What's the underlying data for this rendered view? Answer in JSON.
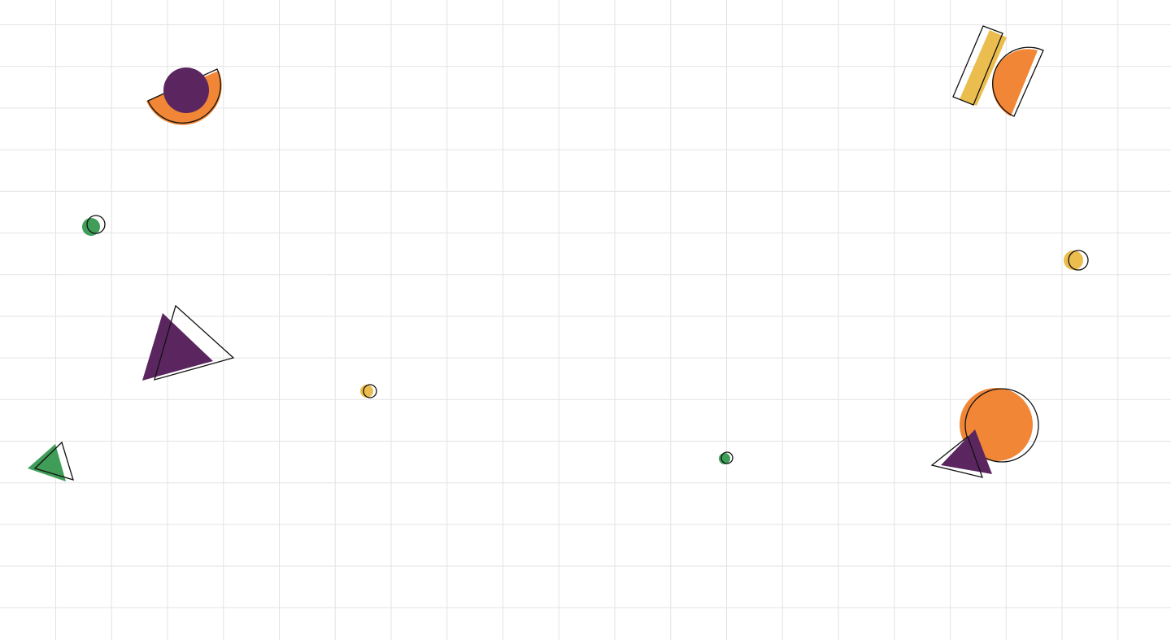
{
  "colors": {
    "background": "#ffffff",
    "grid": "#e3e3e3",
    "purple": "#5b2660",
    "orange": "#f08636",
    "yellow": "#ebbd4e",
    "green": "#3f9d58",
    "outline": "#111111"
  },
  "shapes": [
    {
      "name": "purple-circle-orange-semicircle-shape",
      "kind": "circle-over-semicircle"
    },
    {
      "name": "yellow-bar-orange-semicircle-shape",
      "kind": "bar-and-semicircle"
    },
    {
      "name": "green-dot-large-shape",
      "kind": "dot"
    },
    {
      "name": "yellow-dot-right-shape",
      "kind": "dot"
    },
    {
      "name": "purple-triangle-large-shape",
      "kind": "triangle"
    },
    {
      "name": "yellow-dot-small-shape",
      "kind": "dot"
    },
    {
      "name": "green-triangle-shape",
      "kind": "triangle"
    },
    {
      "name": "green-dot-small-shape",
      "kind": "dot"
    },
    {
      "name": "orange-circle-purple-triangle-shape",
      "kind": "circle-and-triangle"
    }
  ]
}
